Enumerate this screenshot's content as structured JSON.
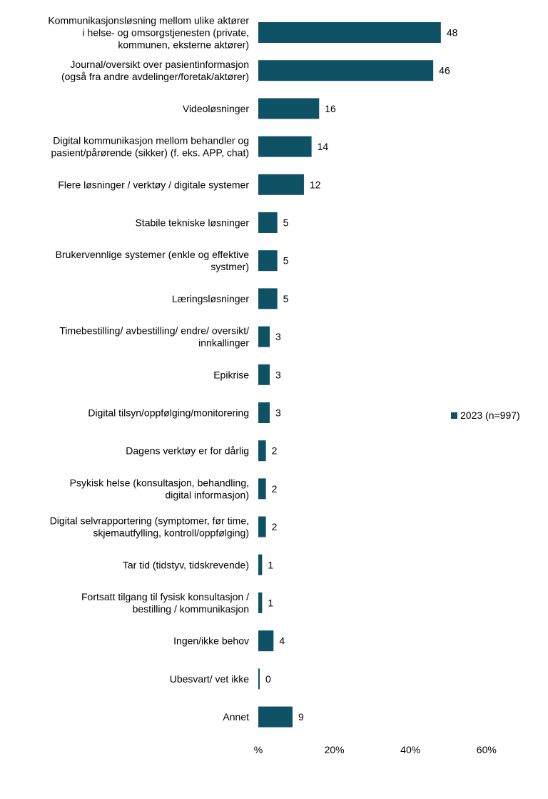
{
  "chart_data": {
    "type": "bar",
    "orientation": "horizontal",
    "categories": [
      [
        "Kommunikasjonsløsning mellom ulike aktører",
        "i helse- og omsorgstjenesten (private,",
        "kommunen, eksterne aktører)"
      ],
      [
        "Journal/oversikt over pasientinformasjon",
        "(også fra andre avdelinger/foretak/aktører)"
      ],
      [
        "Videoløsninger"
      ],
      [
        "Digital kommunikasjon mellom behandler og",
        "pasient/pårørende (sikker) (f. eks. APP, chat)"
      ],
      [
        "Flere løsninger / verktøy / digitale systemer"
      ],
      [
        "Stabile tekniske løsninger"
      ],
      [
        "Brukervennlige systemer (enkle og effektive",
        "systmer)"
      ],
      [
        "Læringsløsninger"
      ],
      [
        "Timebestilling/ avbestilling/ endre/ oversikt/",
        "innkallinger"
      ],
      [
        "Epikrise"
      ],
      [
        "Digital tilsyn/oppfølging/monitorering"
      ],
      [
        "Dagens verktøy er for dårlig"
      ],
      [
        "Psykisk helse (konsultasjon, behandling,",
        "digital informasjon)"
      ],
      [
        "Digital selvrapportering (symptomer, før time,",
        "skjemautfylling, kontroll/oppfølging)"
      ],
      [
        "Tar tid (tidstyv, tidskrevende)"
      ],
      [
        "Fortsatt tilgang til fysisk konsultasjon /",
        "bestilling / kommunikasjon"
      ],
      [
        "Ingen/ikke behov"
      ],
      [
        "Ubesvart/ vet ikke"
      ],
      [
        "Annet"
      ]
    ],
    "series": [
      {
        "name": "2023 (n=997)",
        "values": [
          48,
          46,
          16,
          14,
          12,
          5,
          5,
          5,
          3,
          3,
          3,
          2,
          2,
          2,
          1,
          1,
          4,
          0,
          9
        ],
        "color": "#0f5266"
      }
    ],
    "x_ticks": [
      "%",
      "20%",
      "40%",
      "60%"
    ],
    "xlim": [
      0,
      60
    ],
    "grid": false,
    "legend_position": "right"
  }
}
